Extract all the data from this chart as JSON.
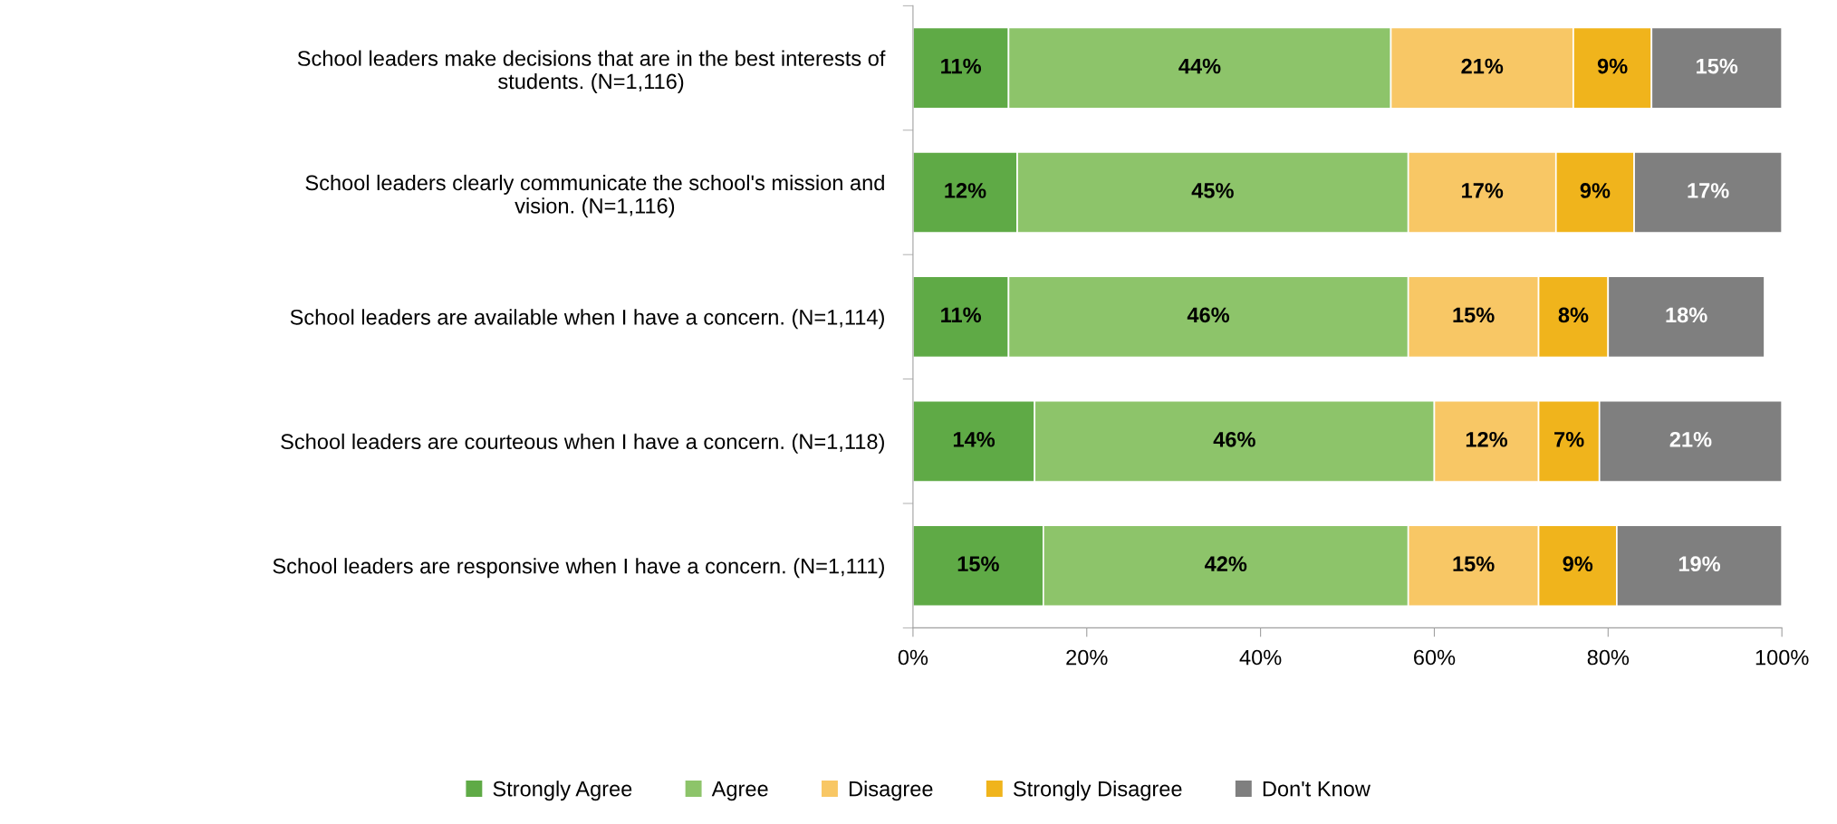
{
  "chart_data": {
    "type": "bar",
    "orientation": "horizontal",
    "stacked": true,
    "legend": "bottom",
    "grid": false,
    "categories": [
      "School leaders make decisions that are in the best interests of\nstudents. (N=1,116)",
      "School leaders clearly communicate the school's mission and\nvision. (N=1,116)",
      "School leaders are available when I have a concern. (N=1,114)",
      "School leaders are courteous when I have a concern. (N=1,118)",
      "School leaders are responsive when I have a concern. (N=1,111)"
    ],
    "series": [
      {
        "name": "Strongly Agree",
        "color": "#5faa46",
        "values": [
          11,
          12,
          11,
          14,
          15
        ],
        "value_labels": [
          "11%",
          "12%",
          "11%",
          "14%",
          "15%"
        ]
      },
      {
        "name": "Agree",
        "color": "#8dc46a",
        "values": [
          44,
          45,
          46,
          46,
          42
        ],
        "value_labels": [
          "44%",
          "45%",
          "46%",
          "46%",
          "42%"
        ]
      },
      {
        "name": "Disagree",
        "color": "#f8c765",
        "values": [
          21,
          17,
          15,
          12,
          15
        ],
        "value_labels": [
          "21%",
          "17%",
          "15%",
          "12%",
          "15%"
        ]
      },
      {
        "name": "Strongly Disagree",
        "color": "#f0b41c",
        "values": [
          9,
          9,
          8,
          7,
          9
        ],
        "value_labels": [
          "9%",
          "9%",
          "8%",
          "7%",
          "9%"
        ]
      },
      {
        "name": "Don't Know",
        "color": "#7f7f7f",
        "values": [
          15,
          17,
          18,
          21,
          19
        ],
        "value_labels": [
          "15%",
          "17%",
          "18%",
          "21%",
          "19%"
        ]
      }
    ],
    "xlim": [
      0,
      100
    ],
    "xticks": [
      {
        "value": 0,
        "label": "0%"
      },
      {
        "value": 20,
        "label": "20%"
      },
      {
        "value": 40,
        "label": "40%"
      },
      {
        "value": 60,
        "label": "60%"
      },
      {
        "value": 80,
        "label": "80%"
      },
      {
        "value": 100,
        "label": "100%"
      }
    ]
  }
}
